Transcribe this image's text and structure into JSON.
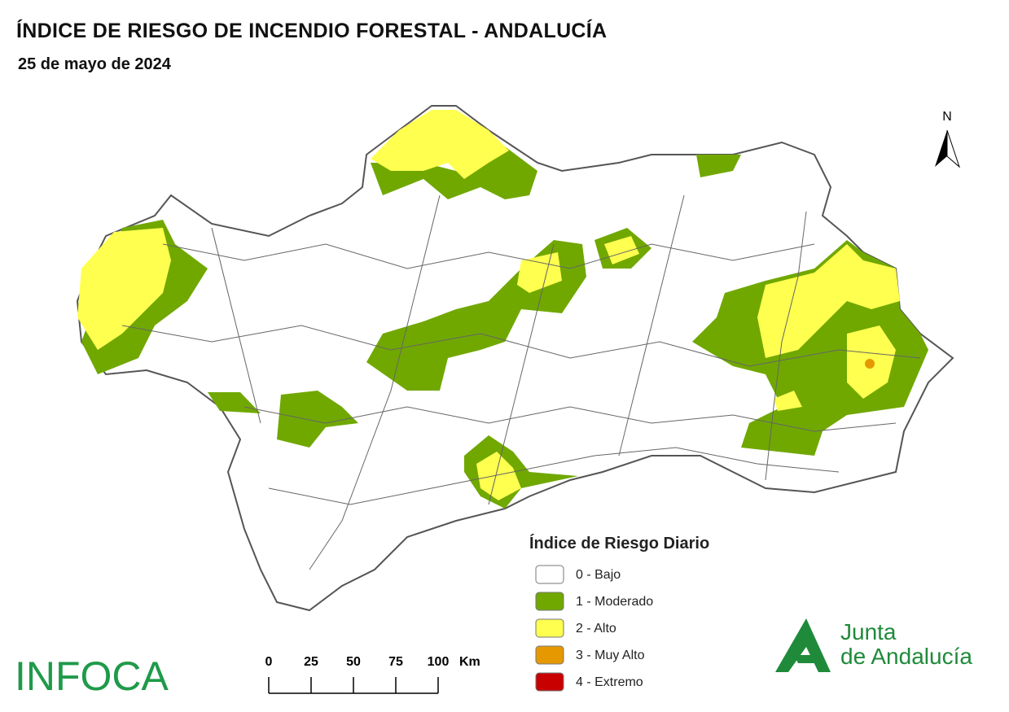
{
  "header": {
    "title": "ÍNDICE DE RIESGO DE INCENDIO FORESTAL - ANDALUCÍA",
    "subtitle": "25 de mayo de 2024"
  },
  "north": "N",
  "legend": {
    "title": "Índice de Riesgo Diario",
    "items": [
      {
        "label": "0 - Bajo",
        "color": "#ffffff"
      },
      {
        "label": "1 - Moderado",
        "color": "#70a800"
      },
      {
        "label": "2 - Alto",
        "color": "#ffff50"
      },
      {
        "label": "3 - Muy Alto",
        "color": "#e69800"
      },
      {
        "label": "4 - Extremo",
        "color": "#c80000"
      }
    ]
  },
  "scale_bar": {
    "ticks": [
      0,
      25,
      50,
      75,
      100
    ],
    "unit": "Km"
  },
  "logos": {
    "infoca": "INFOCA",
    "junta_line1": "Junta",
    "junta_line2": "de Andalucía"
  }
}
